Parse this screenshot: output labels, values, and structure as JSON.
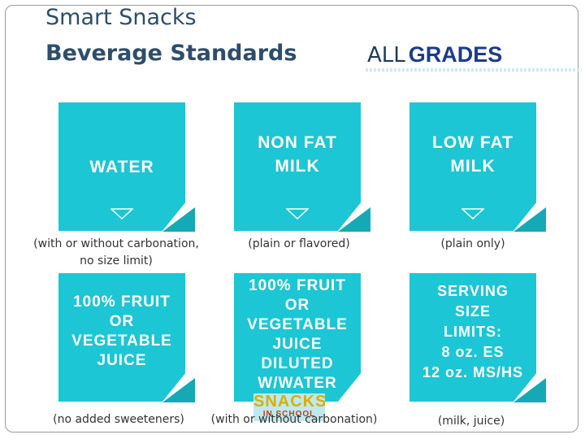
{
  "header": {
    "title_line1": "Smart Snacks",
    "title_line2": "Beverage Standards",
    "grades_all": "ALL",
    "grades_word": "GRADES"
  },
  "cards": [
    {
      "label_lines": [
        "WATER"
      ],
      "caption_lines": [
        "(with or without carbonation,",
        "no size limit)"
      ]
    },
    {
      "label_lines": [
        "NON FAT",
        "MILK"
      ],
      "caption_lines": [
        "(plain or flavored)"
      ]
    },
    {
      "label_lines": [
        "LOW FAT",
        "MILK"
      ],
      "caption_lines": [
        "(plain only)"
      ]
    },
    {
      "label_lines": [
        "100% FRUIT",
        "OR",
        "VEGETABLE",
        "JUICE"
      ],
      "caption_lines": [
        "(no added sweeteners)"
      ]
    },
    {
      "label_lines": [
        "100% FRUIT",
        "OR",
        "VEGETABLE",
        "JUICE",
        "DILUTED",
        "W/WATER"
      ],
      "caption_lines": [
        "(with or without carbonation)"
      ]
    },
    {
      "label_lines": [
        "SERVING",
        "SIZE",
        "LIMITS:",
        "8 oz. ES",
        "12 oz. MS/HS"
      ],
      "caption_lines": [
        "(milk, juice)"
      ]
    }
  ],
  "stamp": {
    "word": "SNACKS",
    "sub": "IN SCHOOL"
  },
  "colors": {
    "card": "#1cc6d4",
    "card_fold": "#15a9b6",
    "title": "#2d4d6b",
    "grades": "#1b3b8a"
  }
}
